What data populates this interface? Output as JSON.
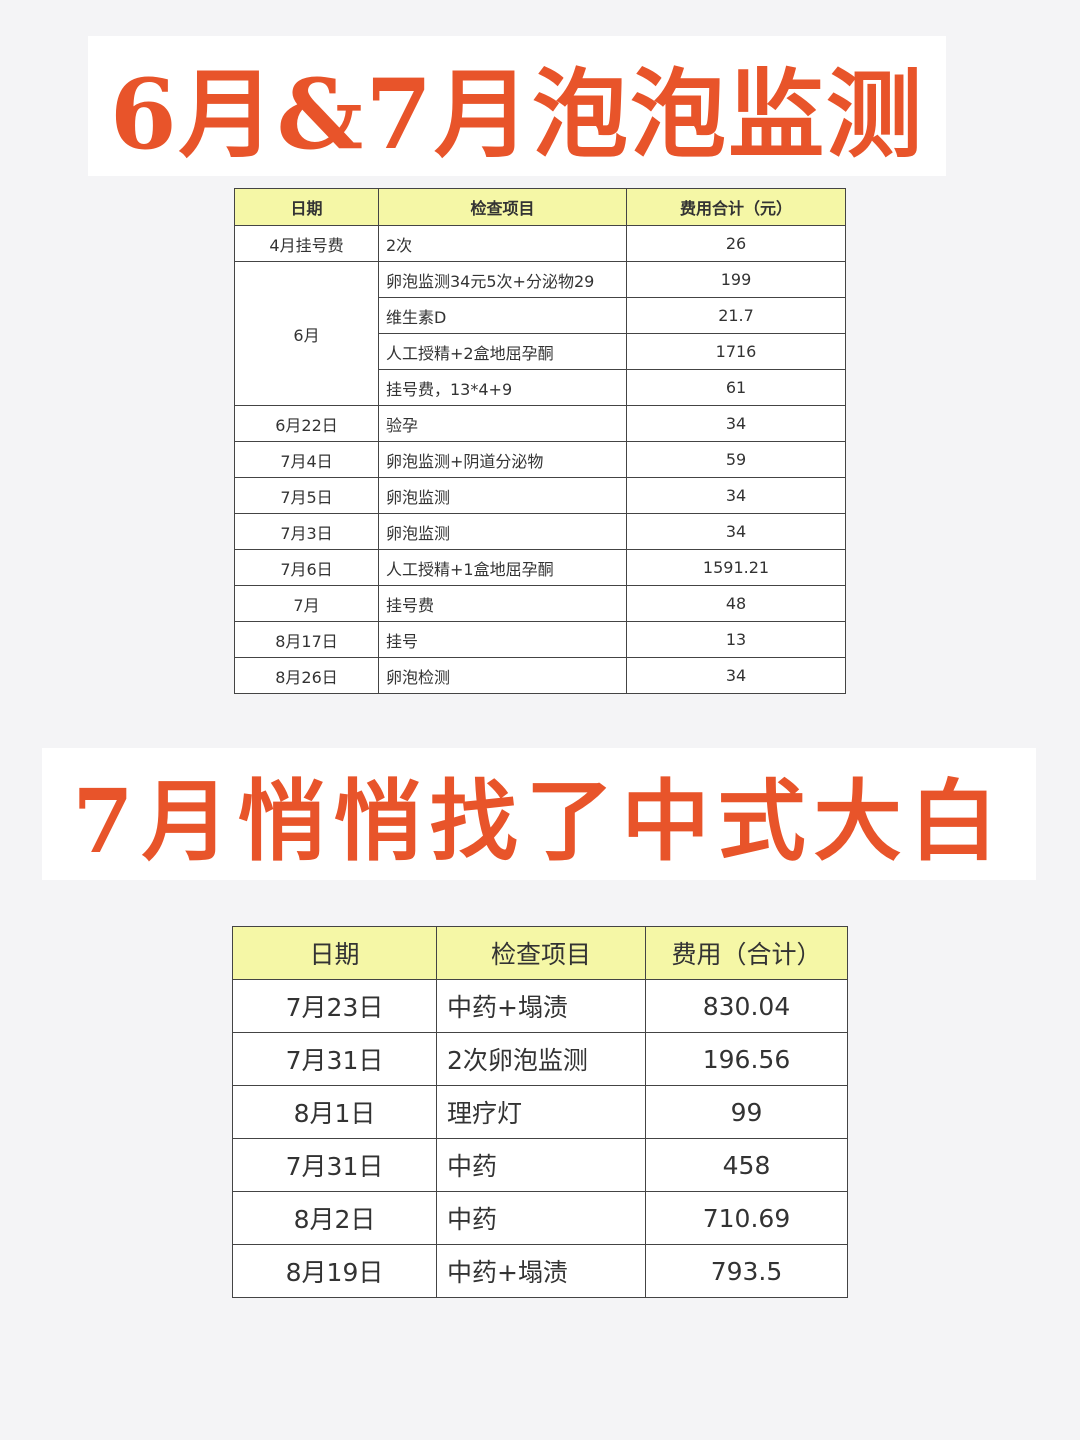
{
  "title1": "6月&7月泡泡监测",
  "title2": "7月悄悄找了中式大白",
  "colors": {
    "title": "#e8542a",
    "header_bg": "#f5f7a6",
    "background": "#f4f4f6"
  },
  "table1": {
    "headers": [
      "日期",
      "检查项目",
      "费用合计（元）"
    ],
    "rows": [
      {
        "date": "4月挂号费",
        "item": "2次",
        "cost": "26"
      },
      {
        "date": "6月",
        "item": "卵泡监测34元5次+分泌物29",
        "cost": "199"
      },
      {
        "date": "",
        "item": "维生素D",
        "cost": "21.7"
      },
      {
        "date": "",
        "item": "人工授精+2盒地屈孕酮",
        "cost": "1716"
      },
      {
        "date": "",
        "item": "挂号费，13*4+9",
        "cost": "61"
      },
      {
        "date": "6月22日",
        "item": "验孕",
        "cost": "34"
      },
      {
        "date": "7月4日",
        "item": "卵泡监测+阴道分泌物",
        "cost": "59"
      },
      {
        "date": "7月5日",
        "item": "卵泡监测",
        "cost": "34"
      },
      {
        "date": "7月3日",
        "item": "卵泡监测",
        "cost": "34"
      },
      {
        "date": "7月6日",
        "item": "人工授精+1盒地屈孕酮",
        "cost": "1591.21"
      },
      {
        "date": "7月",
        "item": "挂号费",
        "cost": "48"
      },
      {
        "date": "8月17日",
        "item": "挂号",
        "cost": "13"
      },
      {
        "date": "8月26日",
        "item": "卵泡检测",
        "cost": "34"
      }
    ]
  },
  "table2": {
    "headers": [
      "日期",
      "检查项目",
      "费用（合计）"
    ],
    "rows": [
      {
        "date": "7月23日",
        "item": "中药+塌渍",
        "cost": "830.04"
      },
      {
        "date": "7月31日",
        "item": "2次卵泡监测",
        "cost": "196.56"
      },
      {
        "date": "8月1日",
        "item": "理疗灯",
        "cost": "99"
      },
      {
        "date": "7月31日",
        "item": "中药",
        "cost": "458"
      },
      {
        "date": "8月2日",
        "item": "中药",
        "cost": "710.69"
      },
      {
        "date": "8月19日",
        "item": "中药+塌渍",
        "cost": "793.5"
      }
    ]
  }
}
